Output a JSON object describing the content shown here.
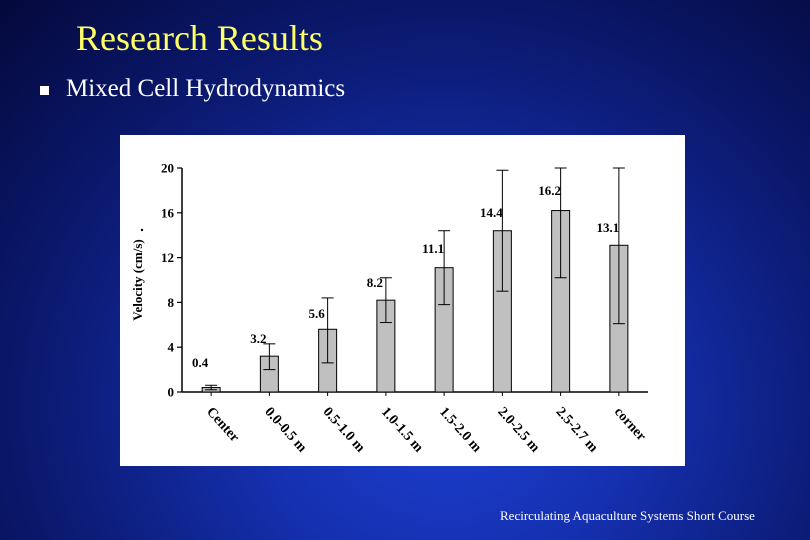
{
  "slide": {
    "title": "Research Results",
    "bullet": "Mixed Cell Hydrodynamics",
    "footer": "Recirculating Aquaculture Systems Short Course",
    "colors": {
      "title": "#ffff66",
      "bullet_text": "#ffffff",
      "bullet_marker": "#ffffff",
      "bar_fill": "#c0c0c0"
    }
  },
  "chart_data": {
    "type": "bar",
    "title": "",
    "xlabel": "",
    "ylabel": "Velocity (cm/s)",
    "ylim": [
      0,
      20
    ],
    "yticks": [
      0,
      4,
      8,
      12,
      16,
      20
    ],
    "categories": [
      "Center",
      "0.0-0.5 m",
      "0.5-1.0 m",
      "1.0-1.5 m",
      "1.5-2.0 m",
      "2.0-2.5 m",
      "2.5-2.7 m",
      "corner"
    ],
    "values": [
      0.4,
      3.2,
      5.6,
      8.2,
      11.1,
      14.4,
      16.2,
      13.1
    ],
    "value_labels": [
      "0.4",
      "3.2",
      "5.6",
      "8.2",
      "11.1",
      "14.4",
      "16.2",
      "13.1"
    ],
    "error_low": [
      0.2,
      2.0,
      2.6,
      6.2,
      7.8,
      9.0,
      10.2,
      6.1
    ],
    "error_high": [
      0.6,
      4.3,
      8.4,
      10.2,
      14.4,
      19.8,
      20.0,
      20.0
    ],
    "grid": false,
    "legend": "none"
  }
}
